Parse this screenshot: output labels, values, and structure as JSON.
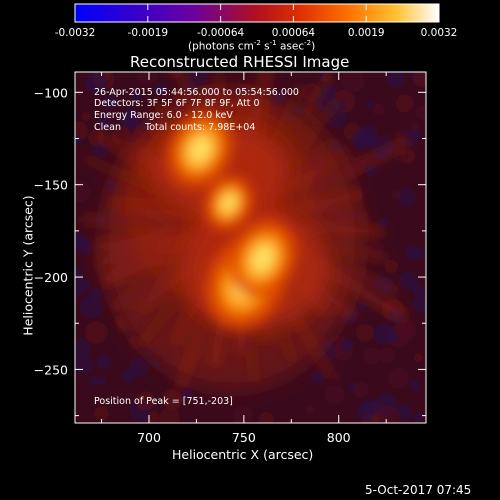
{
  "chart_data": {
    "type": "heatmap",
    "title": "Reconstructed RHESSI Image",
    "xlabel": "Heliocentric X (arcsec)",
    "ylabel": "Heliocentric Y (arcsec)",
    "xlim": [
      661,
      846
    ],
    "ylim": [
      -279,
      -89
    ],
    "x_ticks": [
      700,
      750,
      800
    ],
    "y_ticks": [
      -100,
      -150,
      -200,
      -250
    ],
    "colorbar": {
      "ticks": [
        "-0.0032",
        "-0.0019",
        "-0.00064",
        "0.00064",
        "0.0019",
        "0.0032"
      ],
      "label": "(photons cm",
      "label_sup1": "-2",
      "label_mid": " s",
      "label_sup2": "-1",
      "label_mid2": " asec",
      "label_sup3": "-2",
      "label_end": ")",
      "range": [
        -0.0032,
        0.0032
      ],
      "colors": [
        "#0000ff",
        "#4a00c0",
        "#8a0070",
        "#c01000",
        "#ff5000",
        "#ffa000",
        "#ffe060",
        "#ffffff"
      ]
    },
    "sources": [
      {
        "x": 751,
        "y": -203,
        "peak": 0.0032
      },
      {
        "x": 760,
        "y": -190,
        "peak": 0.0026
      },
      {
        "x": 727,
        "y": -131,
        "peak": 0.0025
      },
      {
        "x": 742,
        "y": -160,
        "peak": 0.0016
      }
    ],
    "annotations": {
      "time_range": "26-Apr-2015 05:44:56.000 to 05:54:56.000",
      "detectors": "Detectors: 3F 5F 6F 7F 8F 9F, Att 0",
      "energy": "Energy Range: 6.0 - 12.0 keV",
      "method": "Clean",
      "counts": "Total counts: 7.98E+04",
      "peak_position": "Position of Peak = [751,-203]"
    },
    "footer_date": "5-Oct-2017 07:45"
  }
}
